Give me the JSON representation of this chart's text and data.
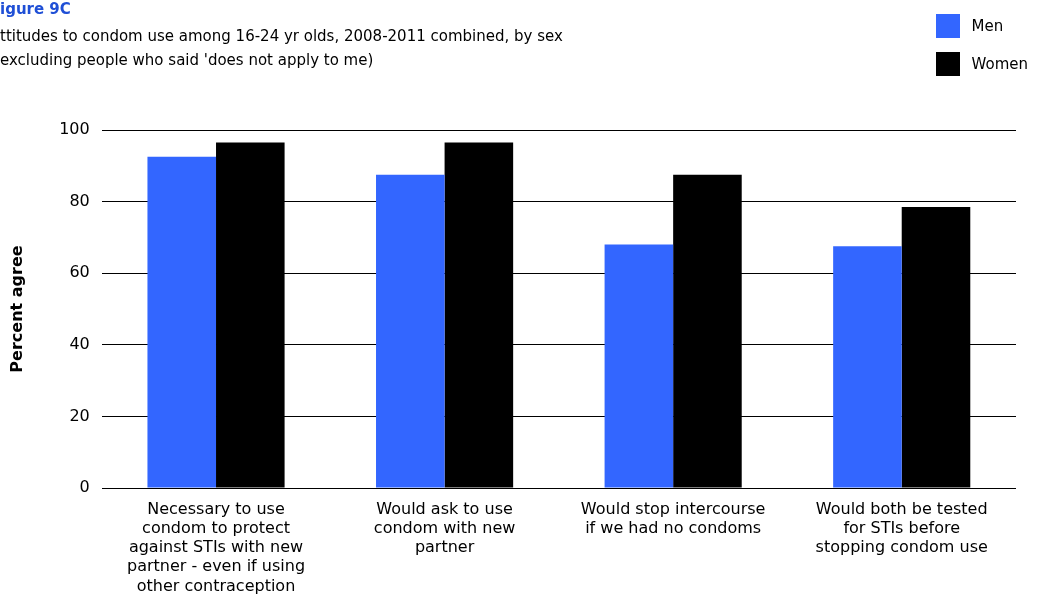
{
  "chart_data": {
    "type": "bar",
    "title": "igure 9C",
    "subtitle": "ttitudes to condom use among 16-24 yr olds, 2008-2011 combined, by sex\nexcluding people who said 'does not apply to me)",
    "ylabel": "Percent agree",
    "categories": [
      "Necessary to use condom to protect against STIs with new partner - even if using other contraception",
      "Would ask to use condom with new partner",
      "Would stop intercourse if we had no condoms",
      "Would both be tested for STIs before stopping condom use"
    ],
    "series": [
      {
        "name": "Men",
        "color": "#3366ff",
        "values": [
          92.5,
          87.5,
          68,
          67.5
        ]
      },
      {
        "name": "Women",
        "color": "#000000",
        "values": [
          96.5,
          96.5,
          87.5,
          78.5
        ]
      }
    ],
    "ylim": [
      0,
      100
    ],
    "yticks": [
      0,
      20,
      40,
      60,
      80,
      100
    ],
    "grid": "y",
    "legend": "top right"
  }
}
